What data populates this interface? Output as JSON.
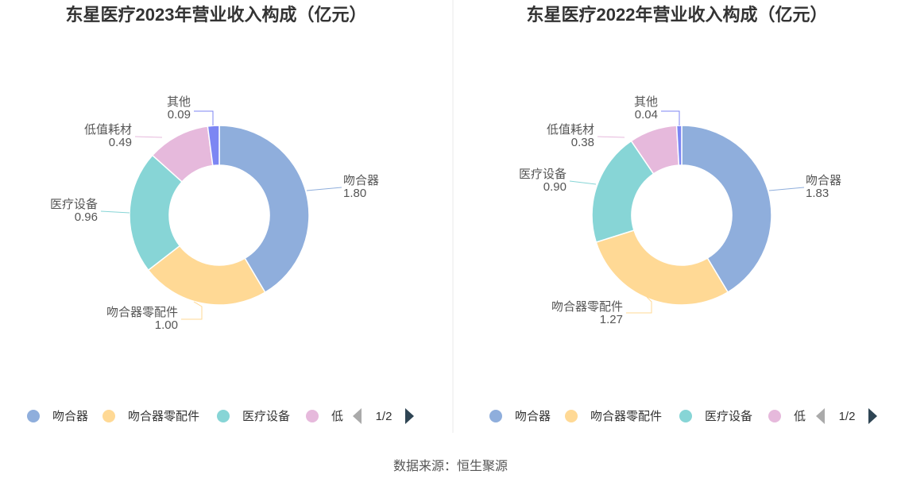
{
  "source_note": "数据来源：恒生聚源",
  "colors": {
    "吻合器": "#8FAEDC",
    "吻合器零配件": "#FFD995",
    "医疗设备": "#87D5D6",
    "低值耗材": "#E6B9DC",
    "其他": "#7C86F3"
  },
  "chart_data": [
    {
      "type": "pie",
      "variant": "donut",
      "title": "东星医疗2023年营业收入构成（亿元）",
      "slices": [
        {
          "name": "吻合器",
          "value": 1.8,
          "label": "1.80"
        },
        {
          "name": "吻合器零配件",
          "value": 1.0,
          "label": "1.00"
        },
        {
          "name": "医疗设备",
          "value": 0.96,
          "label": "0.96"
        },
        {
          "name": "低值耗材",
          "value": 0.49,
          "label": "0.49"
        },
        {
          "name": "其他",
          "value": 0.09,
          "label": "0.09"
        }
      ],
      "legend": {
        "position": "bottom",
        "visible_items": [
          "吻合器",
          "吻合器零配件",
          "医疗设备",
          "低"
        ],
        "page_indicator": "1/2"
      }
    },
    {
      "type": "pie",
      "variant": "donut",
      "title": "东星医疗2022年营业收入构成（亿元）",
      "slices": [
        {
          "name": "吻合器",
          "value": 1.83,
          "label": "1.83"
        },
        {
          "name": "吻合器零配件",
          "value": 1.27,
          "label": "1.27"
        },
        {
          "name": "医疗设备",
          "value": 0.9,
          "label": "0.90"
        },
        {
          "name": "低值耗材",
          "value": 0.38,
          "label": "0.38"
        },
        {
          "name": "其他",
          "value": 0.04,
          "label": "0.04"
        }
      ],
      "legend": {
        "position": "bottom",
        "visible_items": [
          "吻合器",
          "吻合器零配件",
          "医疗设备",
          "低"
        ],
        "page_indicator": "1/2"
      }
    }
  ]
}
